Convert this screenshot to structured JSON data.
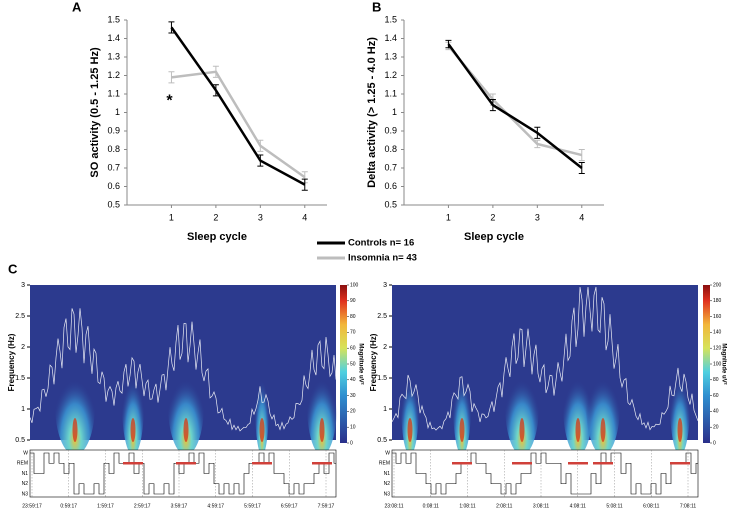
{
  "chart_data": [
    {
      "type": "line",
      "panel": "A",
      "ylabel": "SO activity (0.5 - 1.25 Hz)",
      "xlabel": "Sleep cycle",
      "x": [
        1,
        2,
        3,
        4
      ],
      "xlim": [
        0,
        4.5
      ],
      "xticks": [
        1,
        2,
        3,
        4
      ],
      "ylim": [
        0.5,
        1.5
      ],
      "yticks": [
        0.5,
        0.6,
        0.7,
        0.8,
        0.9,
        1,
        1.1,
        1.2,
        1.3,
        1.4,
        1.5
      ],
      "annotation": "*",
      "series": [
        {
          "name": "Controls n= 16",
          "color": "#000000",
          "values": [
            1.46,
            1.12,
            0.74,
            0.61
          ],
          "errors": [
            0.03,
            0.03,
            0.03,
            0.03
          ]
        },
        {
          "name": "Insomnia n= 43",
          "color": "#bdbdbd",
          "values": [
            1.19,
            1.22,
            0.82,
            0.65
          ],
          "errors": [
            0.03,
            0.03,
            0.03,
            0.03
          ]
        }
      ]
    },
    {
      "type": "line",
      "panel": "B",
      "ylabel": "Delta activity (> 1.25 - 4.0 Hz)",
      "xlabel": "Sleep cycle",
      "x": [
        1,
        2,
        3,
        4
      ],
      "xlim": [
        0,
        4.5
      ],
      "xticks": [
        1,
        2,
        3,
        4
      ],
      "ylim": [
        0.5,
        1.5
      ],
      "yticks": [
        0.5,
        0.6,
        0.7,
        0.8,
        0.9,
        1,
        1.1,
        1.2,
        1.3,
        1.4,
        1.5
      ],
      "series": [
        {
          "name": "Controls n= 16",
          "color": "#000000",
          "values": [
            1.37,
            1.04,
            0.89,
            0.7
          ],
          "errors": [
            0.02,
            0.03,
            0.03,
            0.03
          ]
        },
        {
          "name": "Insomnia n= 43",
          "color": "#bdbdbd",
          "values": [
            1.36,
            1.07,
            0.83,
            0.77
          ],
          "errors": [
            0.02,
            0.03,
            0.02,
            0.03
          ]
        }
      ]
    },
    {
      "type": "spectrogram",
      "panel": "C",
      "ylabel": "Frequency (Hz)",
      "colorbar_label": "Magnitude uV²",
      "ylim": [
        0.5,
        3
      ],
      "yticks": [
        0.5,
        1,
        1.5,
        2,
        2.5,
        3
      ],
      "colorbar_lim": [
        0,
        100
      ],
      "colorbar_ticks": [
        0,
        10,
        20,
        30,
        40,
        50,
        60,
        70,
        80,
        90,
        100
      ],
      "stage_labels": [
        "W",
        "REM",
        "N1",
        "N2",
        "N3"
      ],
      "time_labels": [
        "23:59:17",
        "0:59:17",
        "1:59:17",
        "2:59:17",
        "3:59:17",
        "4:59:17",
        "5:59:17",
        "6:59:17",
        "7:59:17"
      ]
    },
    {
      "type": "spectrogram",
      "ylabel": "Frequency (Hz)",
      "colorbar_label": "Magnitude uV²",
      "ylim": [
        0.5,
        3
      ],
      "yticks": [
        0.5,
        1,
        1.5,
        2,
        2.5,
        3
      ],
      "colorbar_lim": [
        0,
        200
      ],
      "colorbar_ticks": [
        0,
        20,
        40,
        60,
        80,
        100,
        120,
        140,
        160,
        180,
        200
      ],
      "stage_labels": [
        "W",
        "REM",
        "N1",
        "N2",
        "N3"
      ],
      "time_labels": [
        "23:08:11",
        "0:08:11",
        "1:08:11",
        "2:08:11",
        "3:08:11",
        "4:08:11",
        "5:08:11",
        "6:08:11",
        "7:08:11"
      ]
    }
  ]
}
